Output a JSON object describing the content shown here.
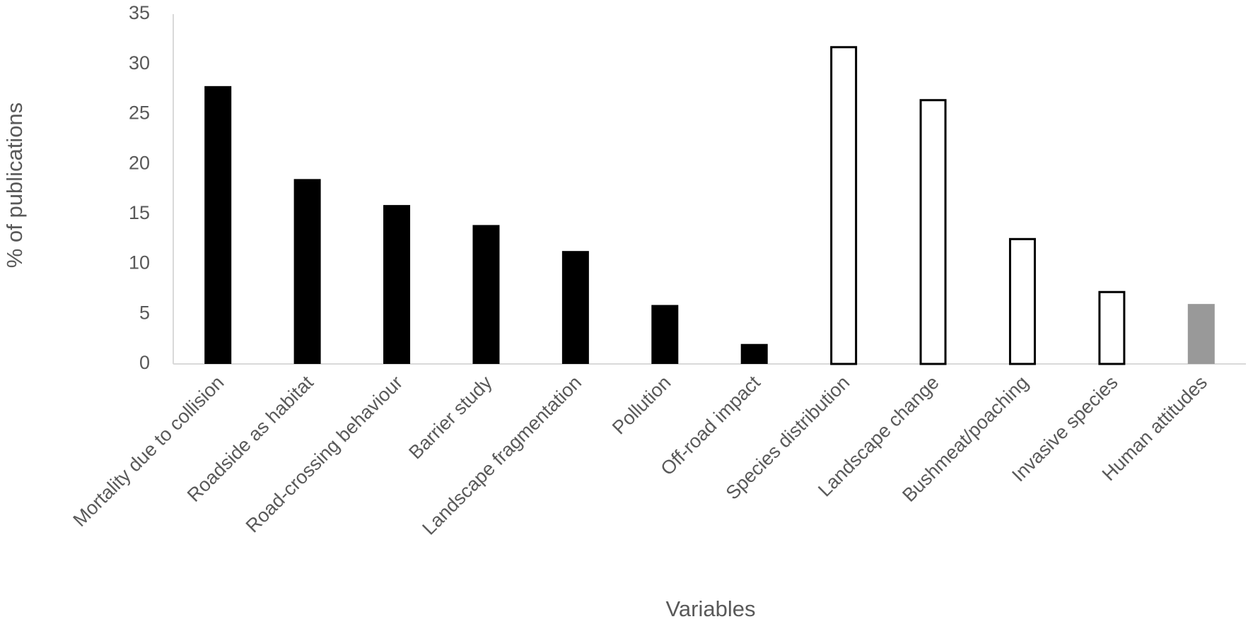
{
  "chart_data": {
    "type": "bar",
    "title": "",
    "xlabel": "Variables",
    "ylabel": "% of publications",
    "ylim": [
      0,
      35
    ],
    "yticks": [
      0,
      5,
      10,
      15,
      20,
      25,
      30,
      35
    ],
    "grid": false,
    "legend": "none",
    "categories": [
      "Mortality due to collision",
      "Roadside as habitat",
      "Road-crossing behaviour",
      "Barrier study",
      "Landscape fragmentation",
      "Pollution",
      "Off-road impact",
      "Species distribution",
      "Landscape change",
      "Bushmeat/poaching",
      "Invasive species",
      "Human attitudes"
    ],
    "values": [
      27.8,
      18.5,
      15.9,
      13.9,
      11.3,
      5.9,
      2.0,
      31.8,
      26.5,
      12.6,
      7.3,
      6.0
    ],
    "bar_styles": [
      "solid",
      "solid",
      "solid",
      "solid",
      "solid",
      "solid",
      "solid",
      "outline",
      "outline",
      "outline",
      "outline",
      "grey"
    ],
    "colors": {
      "solid": "#000000",
      "outline_fill": "#ffffff",
      "outline_stroke": "#000000",
      "grey": "#999999",
      "axis": "#d9d9d9",
      "text": "#595959"
    }
  }
}
